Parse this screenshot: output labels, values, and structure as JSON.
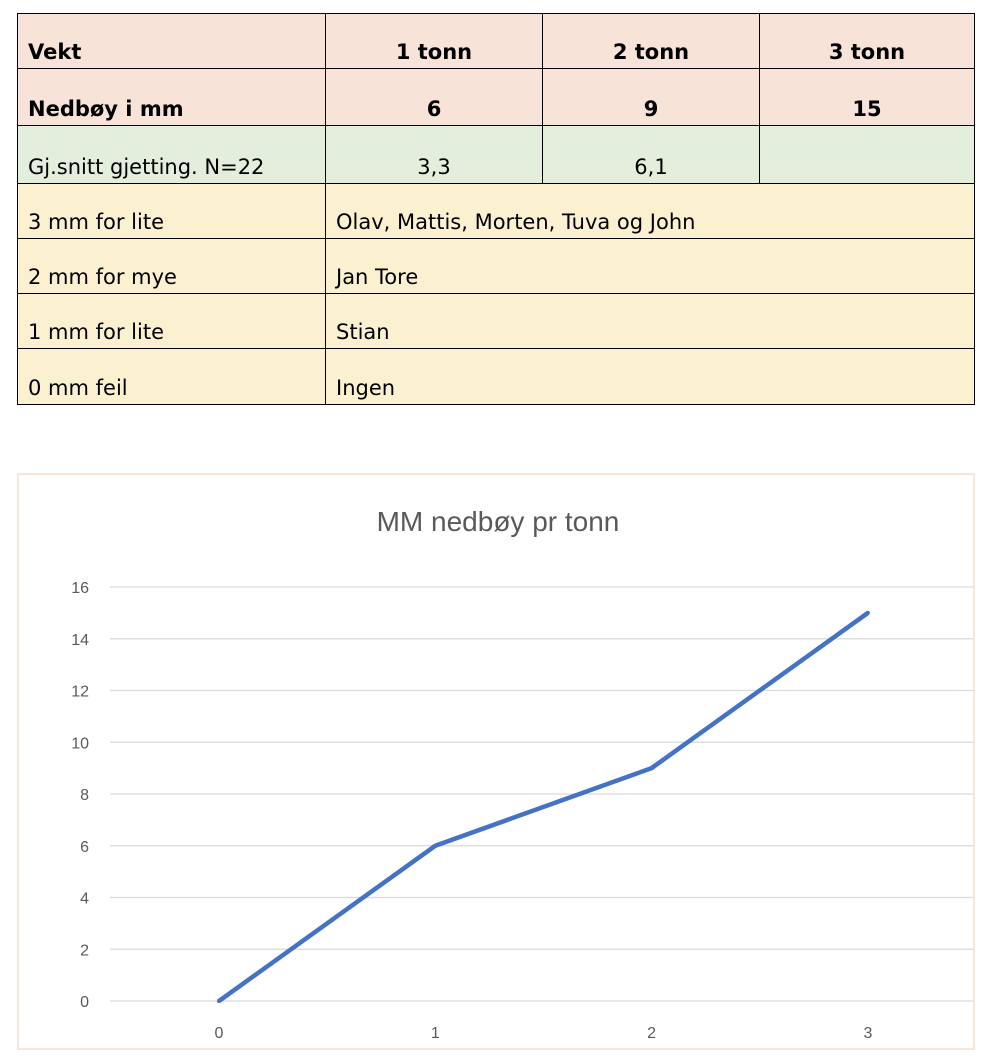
{
  "table": {
    "header": [
      "Vekt",
      "1 tonn",
      "2 tonn",
      "3 tonn"
    ],
    "actual": [
      "Nedbøy i mm",
      "6",
      "9",
      "15"
    ],
    "guess": [
      "Gj.snitt gjetting. N=22",
      "3,3",
      "6,1",
      ""
    ],
    "results": [
      [
        "3 mm for lite",
        "Olav, Mattis, Morten, Tuva og John"
      ],
      [
        "2 mm for mye",
        "Jan Tore"
      ],
      [
        "1 mm for lite",
        "Stian"
      ],
      [
        "0 mm feil",
        "Ingen"
      ]
    ]
  },
  "chart_data": {
    "type": "line",
    "title": "MM nedbøy pr tonn",
    "x": [
      0,
      1,
      2,
      3
    ],
    "categories": [
      "0",
      "1",
      "2",
      "3"
    ],
    "series": [
      {
        "values": [
          0,
          6,
          9,
          15
        ],
        "color": "#4472c4"
      }
    ],
    "ylim": [
      0,
      16
    ],
    "yticks": [
      "0",
      "2",
      "4",
      "6",
      "8",
      "10",
      "12",
      "14",
      "16"
    ],
    "grid": true,
    "xlabel": "",
    "ylabel": ""
  }
}
